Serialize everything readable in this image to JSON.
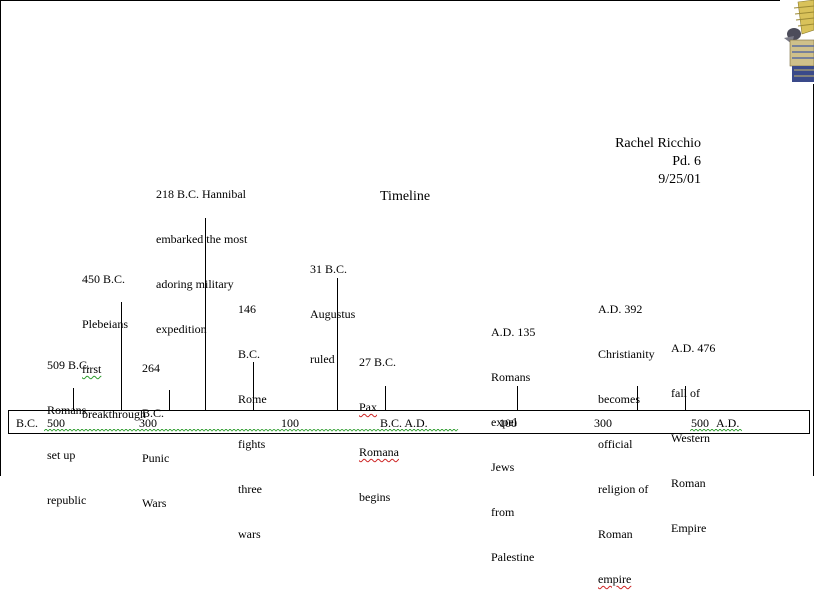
{
  "author": {
    "name": "Rachel Ricchio",
    "period": "Pd. 6",
    "date": "9/25/01"
  },
  "title": "Timeline",
  "events": {
    "e509": [
      "509 B.C.",
      "Romans",
      "set up",
      "republic"
    ],
    "e450": [
      "450 B.C.",
      "Plebeians",
      "first",
      "breakthrough"
    ],
    "e264": [
      "264",
      "B.C.",
      "Punic",
      "Wars"
    ],
    "e218": [
      "218 B.C. Hannibal",
      "embarked the most",
      "adoring military",
      "expedition"
    ],
    "e146": [
      "146",
      "B.C.",
      "Rome",
      "fights",
      "three",
      "wars"
    ],
    "e31": [
      "31 B.C.",
      "Augustus",
      "ruled"
    ],
    "e27": [
      "27 B.C.",
      "Pax",
      "Romana",
      "begins"
    ],
    "e135": [
      "A.D. 135",
      "Romans",
      "expel",
      "Jews",
      "from",
      "Palestine"
    ],
    "e392": [
      "A.D. 392",
      "Christianity",
      "becomes",
      "official",
      "religion of",
      "Roman",
      "empire"
    ],
    "e476": [
      "A.D. 476",
      "fall of",
      "Western",
      "Roman",
      "Empire"
    ]
  },
  "axis": {
    "bc": "B.C.",
    "l500": "500",
    "l300": "300",
    "l100": "100",
    "bcad": "B.C. A.D.",
    "r100": "100",
    "r300": "300",
    "r500": "500",
    "ad": "A.D."
  },
  "icons": {
    "corner_art": "winged-figure-clipart-icon"
  }
}
